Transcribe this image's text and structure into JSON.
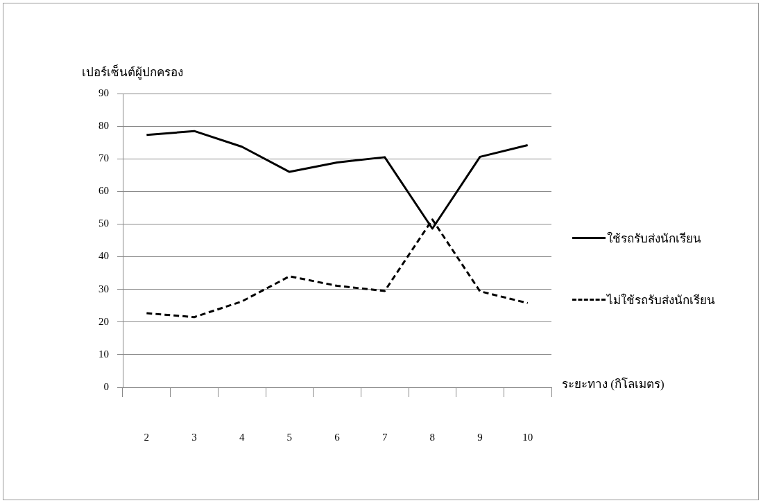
{
  "chart_data": {
    "type": "line",
    "ylabel": "เปอร์เซ็นต์ผู้ปกครอง",
    "xlabel": "ระยะทาง (กิโลเมตร)",
    "categories": [
      "2",
      "3",
      "4",
      "5",
      "6",
      "7",
      "8",
      "9",
      "10"
    ],
    "series": [
      {
        "name": "ใช้รถรับส่งนักเรียน",
        "color": "#000000",
        "line_style": "solid",
        "values": [
          77.3,
          78.5,
          73.7,
          66,
          68.9,
          70.5,
          48.6,
          70.6,
          74.2
        ]
      },
      {
        "name": "ไม่ใช้รถรับส่งนักเรียน",
        "color": "#000000",
        "line_style": "dashed",
        "values": [
          22.7,
          21.5,
          26.3,
          34,
          31.1,
          29.5,
          51.4,
          29.4,
          25.8
        ]
      }
    ],
    "ylim": [
      0,
      90
    ],
    "yticks": [
      0,
      10,
      20,
      30,
      40,
      50,
      60,
      70,
      80,
      90
    ],
    "grid": "y",
    "legend": "right",
    "marker": "none"
  }
}
